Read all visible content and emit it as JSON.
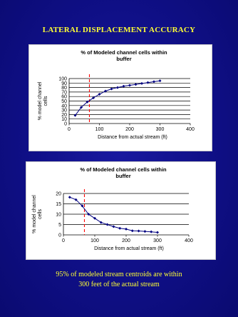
{
  "slide": {
    "title": "LATERAL DISPLACEMENT ACCURACY",
    "caption_line1": "95% of modeled stream centroids are within",
    "caption_line2": "300 feet of the actual stream"
  },
  "colors": {
    "background": "#0f0f86",
    "title_text": "#ffff33",
    "series": "#000080",
    "threshold_line": "#ff0000"
  },
  "chart_data": [
    {
      "type": "line",
      "title_line1": "% of Modeled channel cells within",
      "title_line2": "buffer",
      "xlabel": "Distance from actual stream (ft)",
      "ylabel_line1": "% model channel",
      "ylabel_line2": "cells",
      "xlim": [
        0,
        400
      ],
      "ylim": [
        0,
        100
      ],
      "xticks": [
        0,
        100,
        200,
        300,
        400
      ],
      "yticks": [
        0,
        10,
        20,
        30,
        40,
        50,
        60,
        70,
        80,
        90,
        100
      ],
      "grid": "horizontal",
      "threshold_x": 67,
      "x": [
        20,
        40,
        60,
        80,
        100,
        120,
        140,
        160,
        180,
        200,
        220,
        240,
        260,
        280,
        300
      ],
      "y": [
        18,
        36,
        48,
        57,
        65,
        72,
        77,
        80,
        83,
        85,
        87,
        89,
        91,
        93,
        95
      ]
    },
    {
      "type": "line",
      "title_line1": "% of Modeled channel cells within",
      "title_line2": "buffer",
      "xlabel": "Distance from actual stream (ft)",
      "ylabel_line1": "% model channel",
      "ylabel_line2": "cells",
      "xlim": [
        0,
        400
      ],
      "ylim": [
        0,
        20
      ],
      "xticks": [
        0,
        100,
        200,
        300,
        400
      ],
      "yticks": [
        0,
        5,
        10,
        15,
        20
      ],
      "grid": "horizontal",
      "threshold_x": 67,
      "x": [
        20,
        40,
        60,
        80,
        100,
        120,
        140,
        160,
        180,
        200,
        220,
        240,
        260,
        280,
        300
      ],
      "y": [
        18.2,
        17,
        14,
        10,
        8,
        6,
        5,
        4,
        3.2,
        2.8,
        2,
        1.9,
        1.7,
        1.5,
        1.2
      ]
    }
  ]
}
